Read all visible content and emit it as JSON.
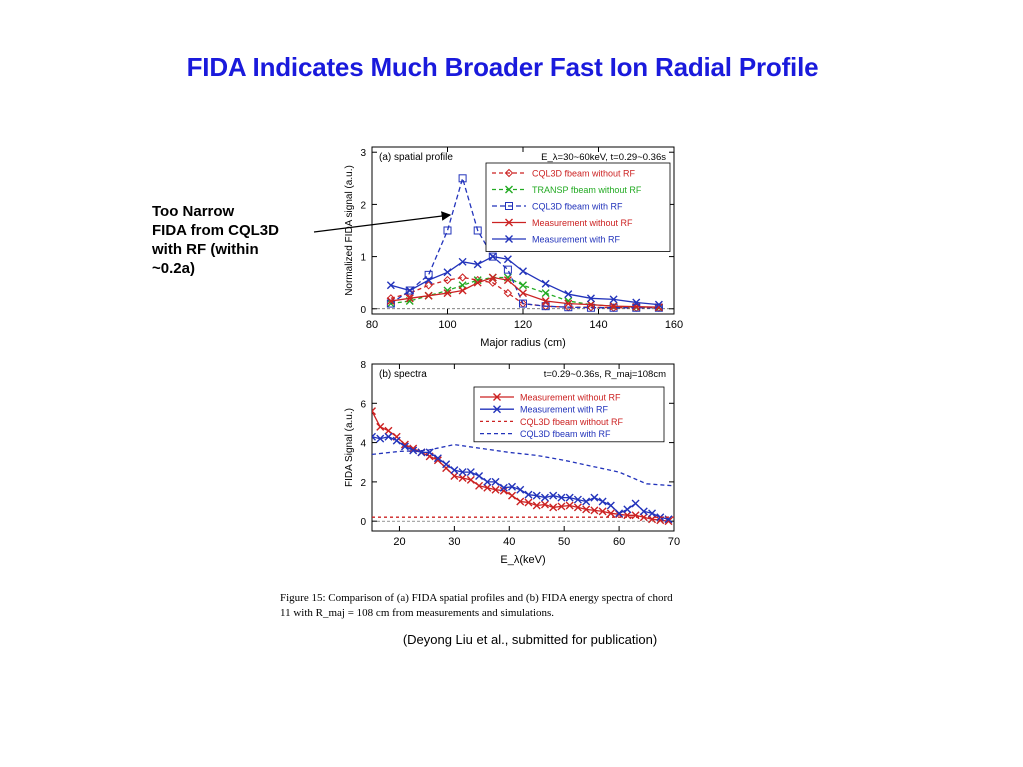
{
  "slide": {
    "title": "FIDA Indicates Much Broader Fast Ion Radial Profile",
    "annotation_lines": [
      "Too Narrow",
      "FIDA from CQL3D",
      "with RF (within",
      "~0.2a)"
    ],
    "caption_lines": [
      "Figure 15:  Comparison of (a) FIDA spatial profiles and (b) FIDA energy spectra of chord",
      "11 with R_maj = 108 cm from measurements and simulations."
    ],
    "citation": "(Deyong Liu et al., submitted for publication)"
  },
  "chart_data": [
    {
      "type": "line",
      "panel_label": "(a) spatial profile",
      "condition_label": "E_λ=30~60keV, t=0.29~0.36s",
      "xlabel": "Major radius (cm)",
      "ylabel": "Normalized FIDA signal  (a.u.)",
      "xlim": [
        80,
        160
      ],
      "ylim": [
        -0.1,
        3.1
      ],
      "x_ticks": [
        80,
        100,
        120,
        140,
        160
      ],
      "y_ticks": [
        0,
        1,
        2,
        3
      ],
      "grid": false,
      "legend_position": "top-right",
      "series": [
        {
          "name": "CQL3D fbeam without RF",
          "color": "#cc2222",
          "dash": "4,3",
          "marker": "diamond",
          "x": [
            85,
            90,
            95,
            100,
            104,
            108,
            112,
            116,
            120,
            126,
            132,
            138,
            144,
            150,
            156
          ],
          "y": [
            0.2,
            0.3,
            0.45,
            0.55,
            0.6,
            0.55,
            0.5,
            0.3,
            0.1,
            0.05,
            0.03,
            0.03,
            0.02,
            0.02,
            0.02
          ]
        },
        {
          "name": "TRANSP fbeam without RF",
          "color": "#22aa22",
          "dash": "4,3",
          "marker": "x",
          "x": [
            85,
            90,
            95,
            100,
            104,
            108,
            112,
            116,
            120,
            126,
            132,
            138,
            144,
            150,
            156
          ],
          "y": [
            0.1,
            0.15,
            0.25,
            0.35,
            0.45,
            0.55,
            0.6,
            0.6,
            0.45,
            0.3,
            0.15,
            0.08,
            0.05,
            0.03,
            0.02
          ]
        },
        {
          "name": "CQL3D fbeam with RF",
          "color": "#2233bb",
          "dash": "5,3",
          "marker": "square",
          "x": [
            85,
            90,
            95,
            100,
            104,
            108,
            112,
            116,
            120,
            126,
            132,
            138,
            144,
            150,
            156
          ],
          "y": [
            0.1,
            0.35,
            0.65,
            1.5,
            2.5,
            1.5,
            1.0,
            0.75,
            0.1,
            0.05,
            0.03,
            0.02,
            0.02,
            0.02,
            0.02
          ]
        },
        {
          "name": "Measurement without RF",
          "color": "#cc2222",
          "dash": "",
          "marker": "x",
          "x": [
            85,
            90,
            95,
            100,
            104,
            108,
            112,
            116,
            120,
            126,
            132,
            138,
            144,
            150,
            156
          ],
          "y": [
            0.15,
            0.2,
            0.25,
            0.3,
            0.35,
            0.5,
            0.6,
            0.55,
            0.3,
            0.15,
            0.1,
            0.08,
            0.05,
            0.04,
            0.03
          ]
        },
        {
          "name": "Measurement with RF",
          "color": "#2233bb",
          "dash": "",
          "marker": "x",
          "x": [
            85,
            90,
            95,
            100,
            104,
            108,
            112,
            116,
            120,
            126,
            132,
            138,
            144,
            150,
            156
          ],
          "y": [
            0.45,
            0.35,
            0.55,
            0.7,
            0.9,
            0.85,
            1.0,
            0.95,
            0.72,
            0.48,
            0.28,
            0.2,
            0.18,
            0.12,
            0.08
          ]
        }
      ]
    },
    {
      "type": "line",
      "panel_label": "(b) spectra",
      "condition_label": "t=0.29~0.36s, R_maj=108cm",
      "xlabel": "E_λ(keV)",
      "ylabel": "FIDA Signal (a.u.)",
      "xlim": [
        15,
        70
      ],
      "ylim": [
        -0.5,
        8
      ],
      "x_ticks": [
        20,
        30,
        40,
        50,
        60,
        70
      ],
      "y_ticks": [
        0,
        2,
        4,
        6,
        8
      ],
      "grid": false,
      "legend_position": "top-right",
      "series": [
        {
          "name": "Measurement without RF",
          "color": "#cc2222",
          "dash": "",
          "marker": "x",
          "x": [
            15,
            16.5,
            18,
            19.5,
            21,
            22.5,
            24,
            25.5,
            27,
            28.5,
            30,
            31.5,
            33,
            34.5,
            36,
            37.5,
            39,
            40.5,
            42,
            43.5,
            45,
            46.5,
            48,
            49.5,
            51,
            52.5,
            54,
            55.5,
            57,
            58.5,
            60,
            61.5,
            63,
            64.5,
            66,
            67.5,
            69
          ],
          "y": [
            5.6,
            4.8,
            4.6,
            4.3,
            3.9,
            3.7,
            3.5,
            3.3,
            3.1,
            2.7,
            2.3,
            2.2,
            2.1,
            1.8,
            1.7,
            1.6,
            1.55,
            1.3,
            1.0,
            0.95,
            0.8,
            0.85,
            0.7,
            0.75,
            0.8,
            0.7,
            0.6,
            0.55,
            0.5,
            0.4,
            0.35,
            0.3,
            0.3,
            0.2,
            0.1,
            0.05,
            0.0
          ]
        },
        {
          "name": "Measurement with RF",
          "color": "#2233bb",
          "dash": "",
          "marker": "x",
          "x": [
            15,
            16.5,
            18,
            19.5,
            21,
            22.5,
            24,
            25.5,
            27,
            28.5,
            30,
            31.5,
            33,
            34.5,
            36,
            37.5,
            39,
            40.5,
            42,
            43.5,
            45,
            46.5,
            48,
            49.5,
            51,
            52.5,
            54,
            55.5,
            57,
            58.5,
            60,
            61.5,
            63,
            64.5,
            66,
            67.5,
            69
          ],
          "y": [
            4.3,
            4.2,
            4.3,
            4.1,
            3.8,
            3.6,
            3.5,
            3.5,
            3.2,
            2.9,
            2.6,
            2.5,
            2.5,
            2.3,
            2.0,
            2.0,
            1.7,
            1.75,
            1.6,
            1.35,
            1.3,
            1.2,
            1.3,
            1.2,
            1.2,
            1.1,
            1.0,
            1.2,
            1.0,
            0.8,
            0.4,
            0.6,
            0.9,
            0.5,
            0.4,
            0.2,
            0.1
          ]
        },
        {
          "name": "CQL3D fbeam without RF",
          "color": "#cc2222",
          "dash": "3,3",
          "marker": "none",
          "x": [
            15,
            70
          ],
          "y": [
            0.2,
            0.2
          ]
        },
        {
          "name": "CQL3D fbeam with RF",
          "color": "#2233bb",
          "dash": "4,3",
          "marker": "none",
          "x": [
            15,
            20,
            25,
            30,
            35,
            40,
            45,
            50,
            55,
            60,
            65,
            70
          ],
          "y": [
            3.4,
            3.55,
            3.6,
            3.9,
            3.7,
            3.5,
            3.35,
            3.1,
            2.8,
            2.5,
            1.9,
            1.8
          ]
        }
      ]
    }
  ]
}
